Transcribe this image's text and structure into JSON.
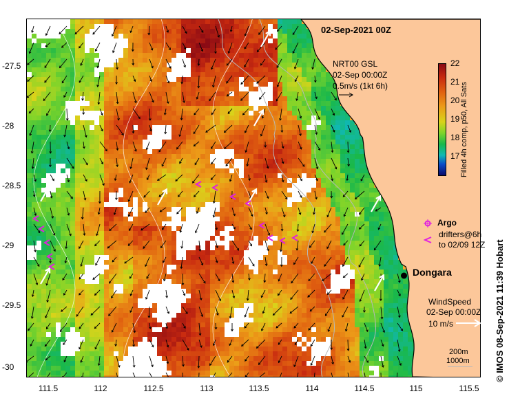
{
  "map": {
    "title": "02-Sep-2021 00Z",
    "product": {
      "line1": "NRT00 GSL",
      "line2": "02-Sep 00:00Z",
      "line3": "0.5m/s (1kt 6h)"
    },
    "place_label": "Dongara",
    "argo_label": "Argo",
    "drifters": {
      "line1": "drifters@6h",
      "line2": "to 02/09 12Z"
    },
    "wind": {
      "line1": "WindSpeed",
      "line2": "02-Sep 00:00Z",
      "line3": "10 m/s"
    },
    "isobaths": {
      "line1": "200m",
      "line2": "1000m"
    },
    "credit": "© IMOS 08-Sep-2021 11:39 Hobart",
    "colorbar": {
      "label": "Filled 4h comp, p50, All Sats",
      "ticks": [
        "22",
        "21",
        "20",
        "19",
        "18",
        "17"
      ],
      "range": [
        16,
        22
      ]
    },
    "lat_ticks": [
      "-27.5",
      "-28",
      "-28.5",
      "-29",
      "-29.5",
      "-30"
    ],
    "lon_ticks": [
      "111.5",
      "112",
      "112.5",
      "113",
      "113.5",
      "114",
      "114.5",
      "115",
      "115.5"
    ],
    "lon_range": [
      111.3,
      115.6
    ],
    "lat_range": [
      -27.12,
      -30.1
    ],
    "colors": {
      "land": "#FCC79A",
      "cloud": "#FFFFFF",
      "argo": "#E020E0",
      "drifter": "#E020E0",
      "bathy": "#B8B8B8"
    }
  }
}
